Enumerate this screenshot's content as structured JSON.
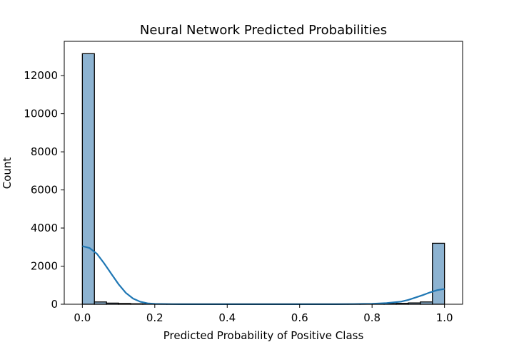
{
  "chart_data": {
    "type": "bar",
    "title": "Neural Network Predicted Probabilities",
    "xlabel": "Predicted Probability of Positive Class",
    "ylabel": "Count",
    "xlim": [
      -0.05,
      1.05
    ],
    "ylim": [
      0,
      13800
    ],
    "xticks": [
      0.0,
      0.2,
      0.4,
      0.6,
      0.8,
      1.0
    ],
    "xtick_labels": [
      "0.0",
      "0.2",
      "0.4",
      "0.6",
      "0.8",
      "1.0"
    ],
    "yticks": [
      0,
      2000,
      4000,
      6000,
      8000,
      10000,
      12000
    ],
    "ytick_labels": [
      "0",
      "2000",
      "4000",
      "6000",
      "8000",
      "10000",
      "12000"
    ],
    "grid": false,
    "bin_edges": [
      0.0,
      0.0333,
      0.0667,
      0.1,
      0.1333,
      0.1667,
      0.2,
      0.2333,
      0.2667,
      0.3,
      0.3333,
      0.3667,
      0.4,
      0.4333,
      0.4667,
      0.5,
      0.5333,
      0.5667,
      0.6,
      0.6333,
      0.6667,
      0.7,
      0.7333,
      0.7667,
      0.8,
      0.8333,
      0.8667,
      0.9,
      0.9333,
      0.9667,
      1.0
    ],
    "values": [
      13150,
      120,
      60,
      40,
      25,
      15,
      10,
      8,
      6,
      5,
      4,
      4,
      3,
      3,
      3,
      3,
      3,
      4,
      4,
      5,
      6,
      8,
      10,
      15,
      20,
      30,
      45,
      70,
      120,
      3200
    ],
    "kde": {
      "x": [
        0.0,
        0.02,
        0.04,
        0.06,
        0.08,
        0.1,
        0.12,
        0.14,
        0.16,
        0.18,
        0.2,
        0.25,
        0.3,
        0.4,
        0.5,
        0.6,
        0.7,
        0.75,
        0.8,
        0.84,
        0.88,
        0.9,
        0.92,
        0.94,
        0.96,
        0.98,
        1.0
      ],
      "y": [
        3050,
        2950,
        2650,
        2150,
        1600,
        1050,
        600,
        300,
        130,
        50,
        20,
        8,
        4,
        3,
        3,
        3,
        5,
        10,
        25,
        60,
        140,
        230,
        350,
        480,
        620,
        740,
        800
      ]
    },
    "bar_color": "#8db3d1",
    "kde_color": "#1f77b4"
  }
}
